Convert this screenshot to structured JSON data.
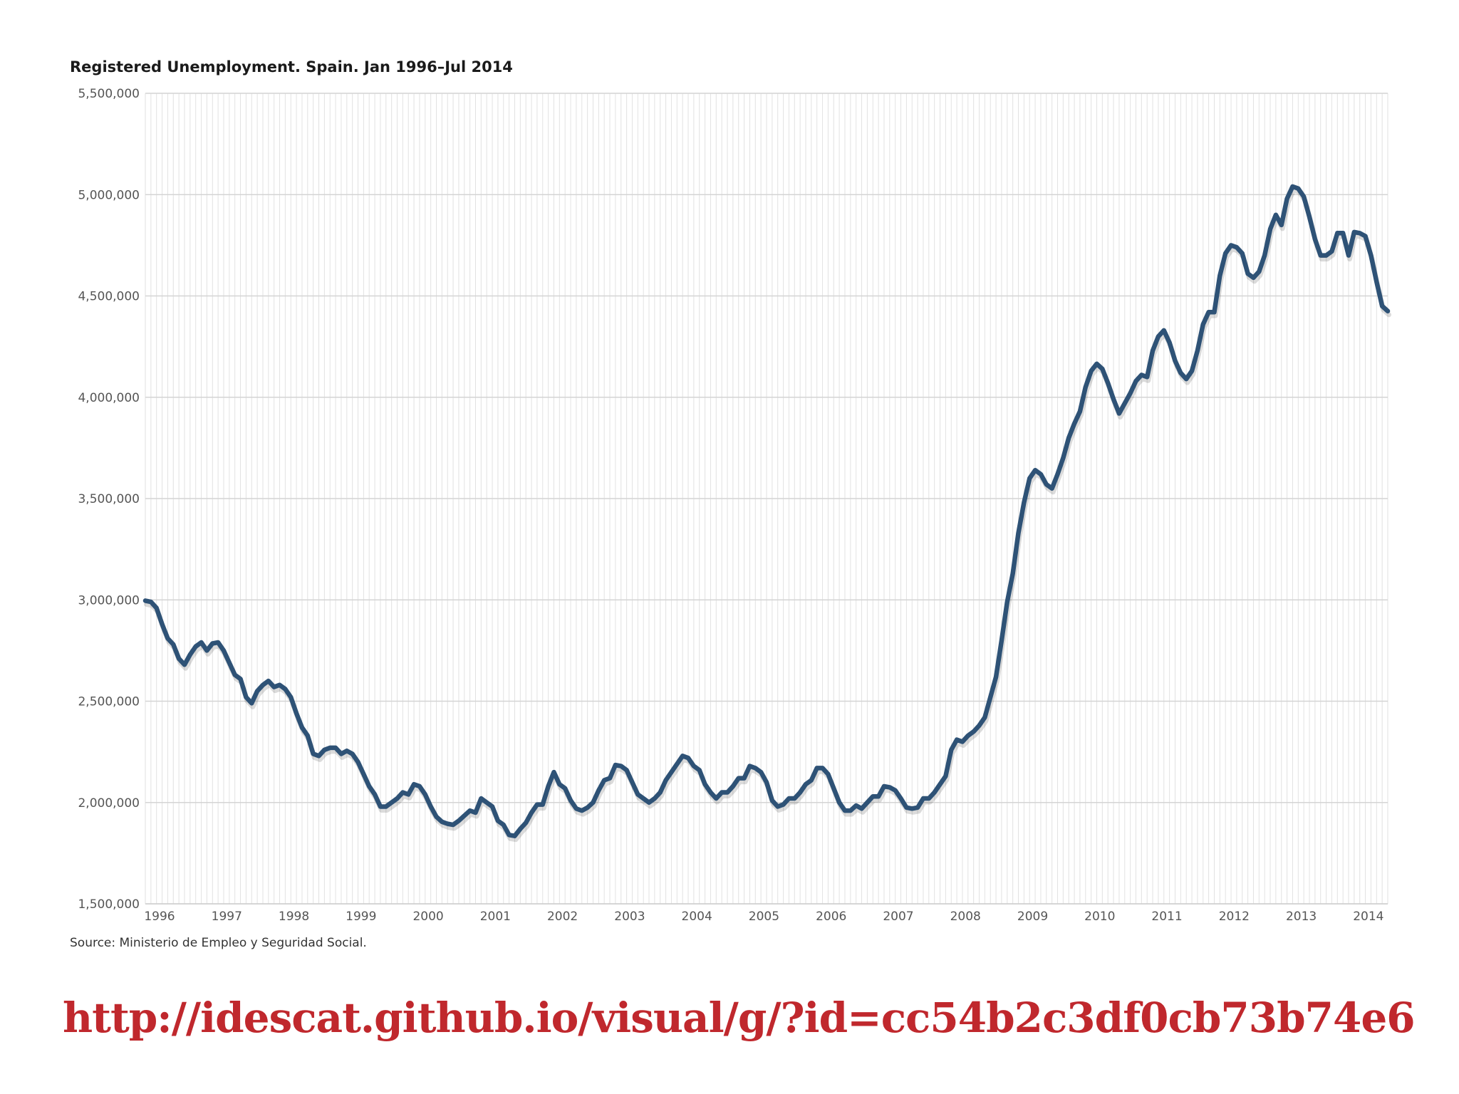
{
  "chart_data": {
    "type": "line",
    "title": "Registered Unemployment. Spain. Jan 1996–Jul 2014",
    "source": "Source: Ministerio de Empleo y Seguridad Social.",
    "ylim": [
      1500000,
      5500000
    ],
    "y_ticks": [
      1500000,
      2000000,
      2500000,
      3000000,
      3500000,
      4000000,
      4500000,
      5000000,
      5500000
    ],
    "y_tick_labels": [
      "1,500,000",
      "2,000,000",
      "2,500,000",
      "3,000,000",
      "3,500,000",
      "4,000,000",
      "4,500,000",
      "5,000,000",
      "5,500,000"
    ],
    "x_tick_labels": [
      "1996",
      "1997",
      "1998",
      "1999",
      "2000",
      "2001",
      "2002",
      "2003",
      "2004",
      "2005",
      "2006",
      "2007",
      "2008",
      "2009",
      "2010",
      "2011",
      "2012",
      "2013",
      "2014"
    ],
    "x_start": "1996-01",
    "x_end": "2014-07",
    "grid": "vertical monthly lines, horizontal lines at y ticks",
    "series": [
      {
        "name": "",
        "color": "#2e5276",
        "values": [
          2996000,
          2990000,
          2960000,
          2880000,
          2810000,
          2780000,
          2710000,
          2680000,
          2730000,
          2770000,
          2790000,
          2750000,
          2785000,
          2790000,
          2750000,
          2690000,
          2630000,
          2610000,
          2520000,
          2490000,
          2550000,
          2580000,
          2600000,
          2570000,
          2580000,
          2560000,
          2520000,
          2440000,
          2370000,
          2330000,
          2240000,
          2230000,
          2260000,
          2270000,
          2270000,
          2240000,
          2255000,
          2240000,
          2200000,
          2140000,
          2080000,
          2040000,
          1980000,
          1980000,
          2000000,
          2020000,
          2050000,
          2040000,
          2090000,
          2080000,
          2040000,
          1980000,
          1930000,
          1905000,
          1895000,
          1890000,
          1910000,
          1935000,
          1960000,
          1950000,
          2020000,
          2000000,
          1980000,
          1910000,
          1890000,
          1840000,
          1835000,
          1870000,
          1900000,
          1950000,
          1990000,
          1990000,
          2080000,
          2150000,
          2090000,
          2070000,
          2010000,
          1970000,
          1960000,
          1975000,
          2000000,
          2060000,
          2110000,
          2120000,
          2185000,
          2180000,
          2160000,
          2100000,
          2040000,
          2020000,
          2000000,
          2020000,
          2050000,
          2110000,
          2150000,
          2190000,
          2230000,
          2220000,
          2180000,
          2160000,
          2090000,
          2050000,
          2020000,
          2050000,
          2050000,
          2080000,
          2120000,
          2120000,
          2180000,
          2170000,
          2150000,
          2100000,
          2010000,
          1980000,
          1990000,
          2020000,
          2020000,
          2050000,
          2090000,
          2110000,
          2170000,
          2170000,
          2140000,
          2070000,
          2000000,
          1960000,
          1960000,
          1985000,
          1970000,
          2000000,
          2030000,
          2030000,
          2080000,
          2075000,
          2060000,
          2020000,
          1975000,
          1970000,
          1975000,
          2020000,
          2020000,
          2050000,
          2090000,
          2130000,
          2260000,
          2310000,
          2300000,
          2330000,
          2350000,
          2380000,
          2420000,
          2520000,
          2620000,
          2800000,
          2990000,
          3130000,
          3330000,
          3480000,
          3600000,
          3640000,
          3620000,
          3570000,
          3550000,
          3620000,
          3700000,
          3800000,
          3870000,
          3930000,
          4050000,
          4130000,
          4165000,
          4140000,
          4070000,
          3990000,
          3920000,
          3970000,
          4020000,
          4080000,
          4110000,
          4100000,
          4230000,
          4300000,
          4330000,
          4270000,
          4180000,
          4120000,
          4090000,
          4130000,
          4230000,
          4360000,
          4420000,
          4420000,
          4600000,
          4710000,
          4750000,
          4740000,
          4710000,
          4610000,
          4590000,
          4620000,
          4700000,
          4830000,
          4900000,
          4850000,
          4980000,
          5040000,
          5030000,
          4990000,
          4890000,
          4780000,
          4700000,
          4700000,
          4720000,
          4810000,
          4810000,
          4700000,
          4815000,
          4810000,
          4795000,
          4700000,
          4570000,
          4450000,
          4425000
        ]
      }
    ]
  },
  "footer": {
    "url": "http://idescat.github.io/visual/g/?id=cc54b2c3df0cb73b74e6"
  }
}
